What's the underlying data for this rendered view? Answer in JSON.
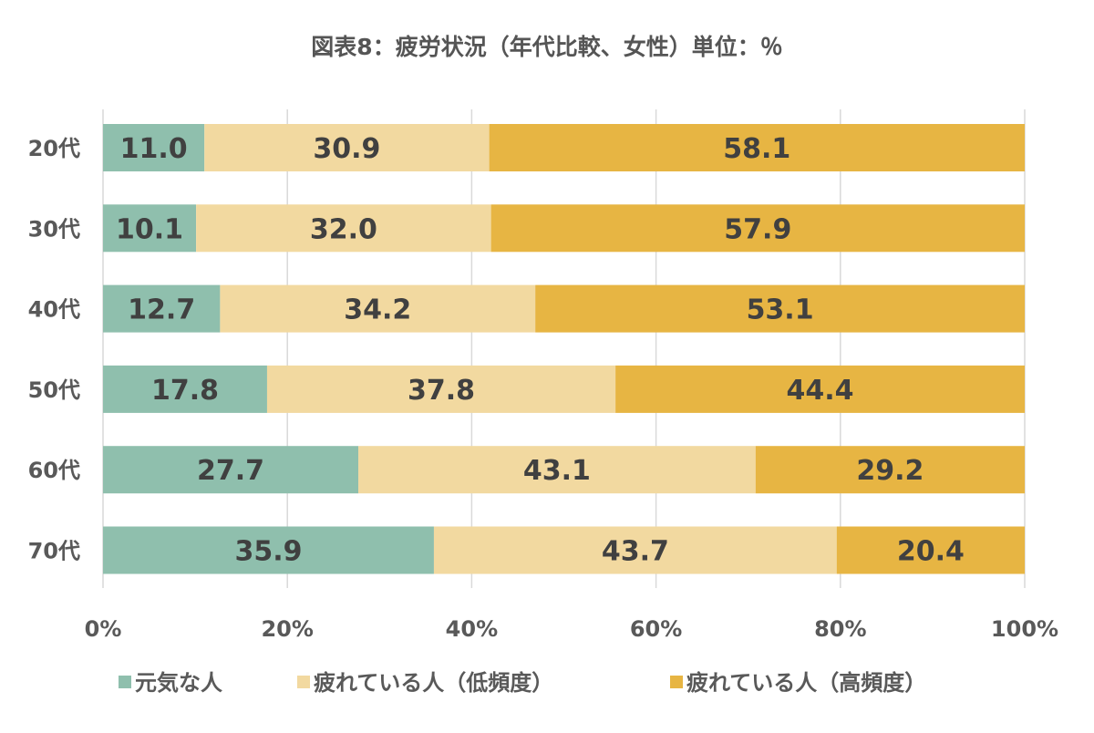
{
  "chart_data": {
    "type": "bar",
    "orientation": "horizontal",
    "stacked": "100%",
    "title": "図表8：疲労状況（年代比較、女性）単位：％",
    "categories": [
      "20代",
      "30代",
      "40代",
      "50代",
      "60代",
      "70代"
    ],
    "series": [
      {
        "name": "元気な人",
        "color": "#8fbfad",
        "values": [
          11.0,
          10.1,
          12.7,
          17.8,
          27.7,
          35.9
        ]
      },
      {
        "name": "疲れている人（低頻度）",
        "color": "#f2d9a0",
        "values": [
          30.9,
          32.0,
          34.2,
          37.8,
          43.1,
          43.7
        ]
      },
      {
        "name": "疲れている人（高頻度）",
        "color": "#e7b543",
        "values": [
          58.1,
          57.9,
          53.1,
          44.4,
          29.2,
          20.4
        ]
      }
    ],
    "xlim": [
      0,
      100
    ],
    "xticks": [
      "0%",
      "20%",
      "40%",
      "60%",
      "80%",
      "100%"
    ],
    "grid": true,
    "legend": "bottom",
    "data_labels": true
  }
}
